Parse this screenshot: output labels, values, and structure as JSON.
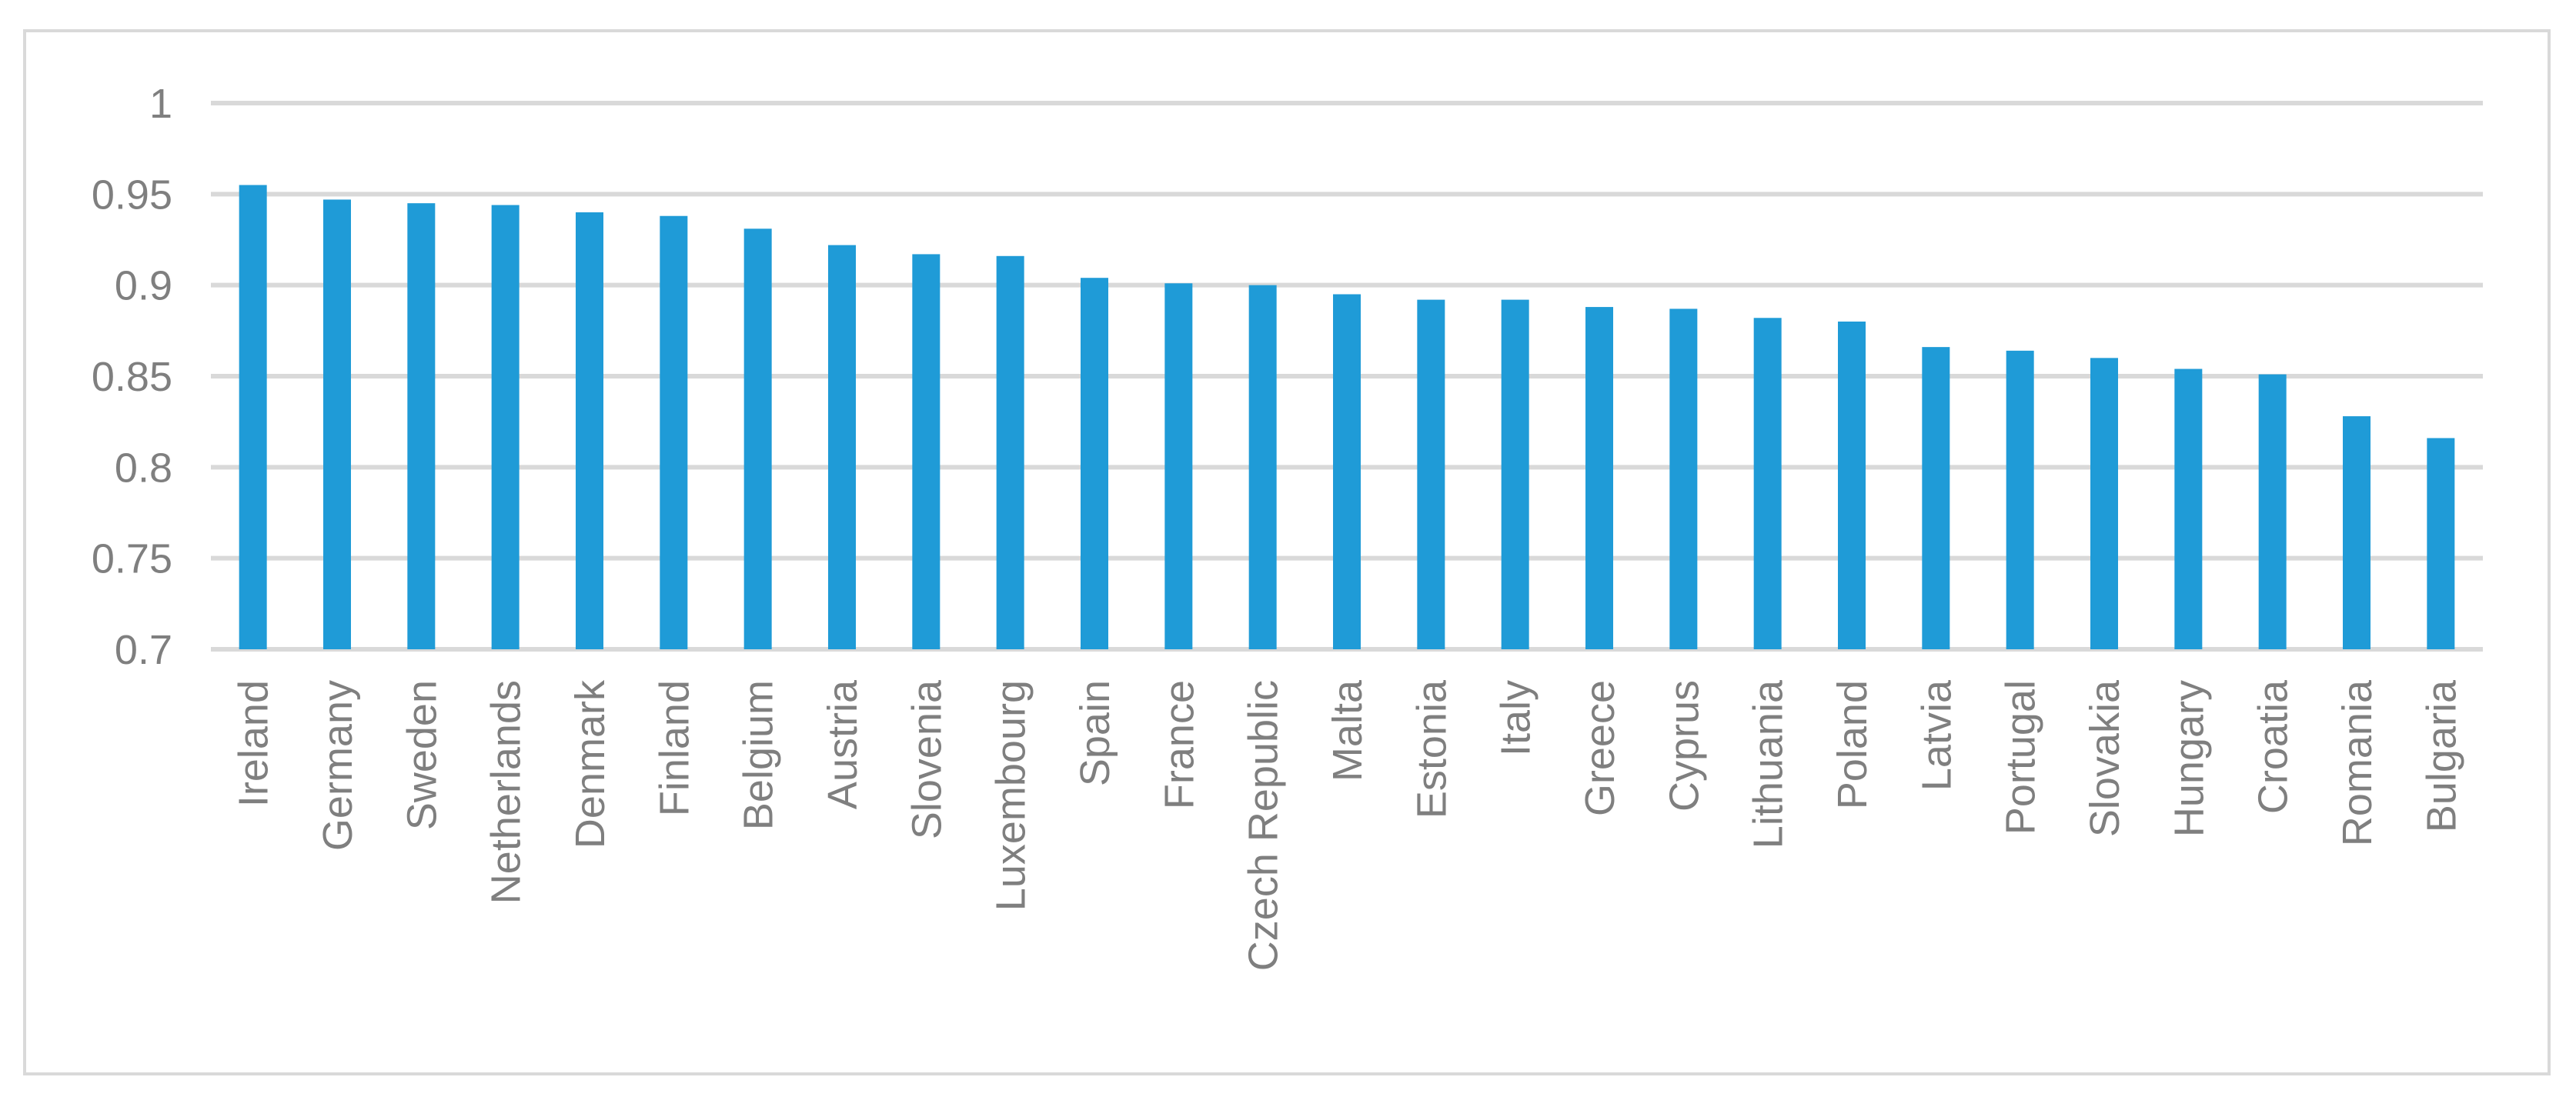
{
  "chart_data": {
    "type": "bar",
    "title": "",
    "xlabel": "",
    "ylabel": "",
    "ylim": [
      0.7,
      1
    ],
    "yticks": [
      0.7,
      0.75,
      0.8,
      0.85,
      0.9,
      0.95,
      1
    ],
    "ytick_labels": [
      "0.7",
      "0.75",
      "0.8",
      "0.85",
      "0.9",
      "0.95",
      "1"
    ],
    "grid": true,
    "legend": "none",
    "bar_color": "#1f9bd7",
    "categories": [
      "Ireland",
      "Germany",
      "Sweden",
      "Netherlands",
      "Denmark",
      "Finland",
      "Belgium",
      "Austria",
      "Slovenia",
      "Luxembourg",
      "Spain",
      "France",
      "Czech Republic",
      "Malta",
      "Estonia",
      "Italy",
      "Greece",
      "Cyprus",
      "Lithuania",
      "Poland",
      "Latvia",
      "Portugal",
      "Slovakia",
      "Hungary",
      "Croatia",
      "Romania",
      "Bulgaria"
    ],
    "values": [
      0.955,
      0.947,
      0.945,
      0.944,
      0.94,
      0.938,
      0.931,
      0.922,
      0.917,
      0.916,
      0.904,
      0.901,
      0.9,
      0.895,
      0.892,
      0.892,
      0.888,
      0.887,
      0.882,
      0.88,
      0.866,
      0.864,
      0.86,
      0.854,
      0.851,
      0.828,
      0.816
    ]
  }
}
